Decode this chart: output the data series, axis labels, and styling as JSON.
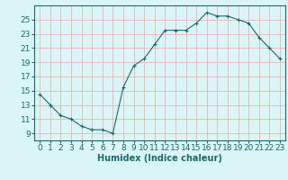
{
  "x": [
    0,
    1,
    2,
    3,
    4,
    5,
    6,
    7,
    8,
    9,
    10,
    11,
    12,
    13,
    14,
    15,
    16,
    17,
    18,
    19,
    20,
    21,
    22,
    23
  ],
  "y": [
    14.5,
    13,
    11.5,
    11,
    10,
    9.5,
    9.5,
    9,
    15.5,
    18.5,
    19.5,
    21.5,
    23.5,
    23.5,
    23.5,
    24.5,
    26,
    25.5,
    25.5,
    25,
    24.5,
    22.5,
    21,
    19.5
  ],
  "line_color": "#1a6b6b",
  "marker": "+",
  "bg_color": "#d9f5f5",
  "grid_color": "#f0b0b0",
  "xlabel": "Humidex (Indice chaleur)",
  "ylim": [
    8,
    27
  ],
  "yticks": [
    9,
    11,
    13,
    15,
    17,
    19,
    21,
    23,
    25
  ],
  "xtick_labels": [
    "0",
    "1",
    "2",
    "3",
    "4",
    "5",
    "6",
    "7",
    "8",
    "9",
    "10",
    "11",
    "12",
    "13",
    "14",
    "15",
    "16",
    "17",
    "18",
    "19",
    "20",
    "21",
    "22",
    "23"
  ],
  "xlabel_fontsize": 7,
  "tick_fontsize": 6.5
}
